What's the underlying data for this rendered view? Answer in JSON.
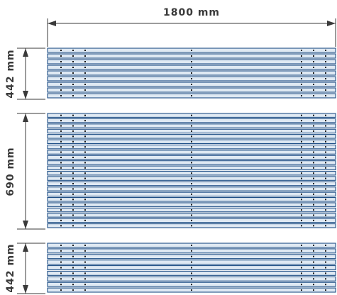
{
  "dimensions": {
    "width_label": "1800 mm",
    "sections": [
      {
        "label": "442 mm",
        "slats": 9
      },
      {
        "label": "690 mm",
        "slats": 22
      },
      {
        "label": "442 mm",
        "slats": 9
      }
    ]
  },
  "colors": {
    "slat_fill": "#dfe9f3",
    "slat_stroke": "#1f4f86",
    "dim_line": "#3a3a3a"
  }
}
